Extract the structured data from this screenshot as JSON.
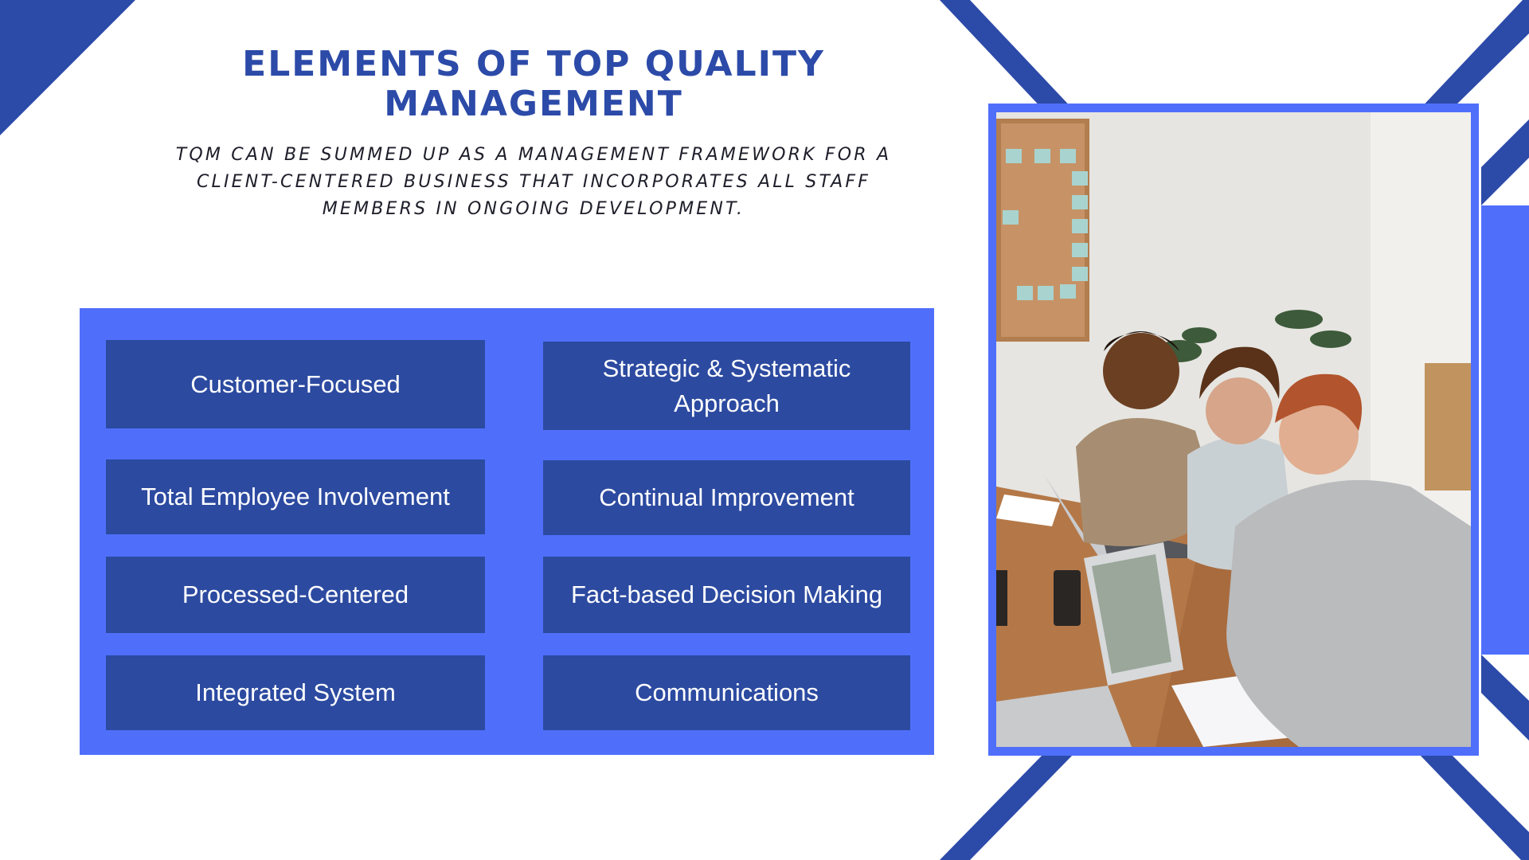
{
  "slide": {
    "title": "ELEMENTS OF TOP QUALITY MANAGEMENT",
    "subtitle": "TQM CAN BE SUMMED UP AS A MANAGEMENT FRAMEWORK FOR A CLIENT-CENTERED BUSINESS THAT INCORPORATES ALL STAFF MEMBERS IN ONGOING DEVELOPMENT."
  },
  "elements": [
    {
      "label": "Customer-Focused"
    },
    {
      "label": "Strategic & Systematic Approach"
    },
    {
      "label": "Total Employee Involvement"
    },
    {
      "label": "Continual Improvement"
    },
    {
      "label": "Processed-Centered"
    },
    {
      "label": "Fact-based Decision Making"
    },
    {
      "label": "Integrated System"
    },
    {
      "label": "Communications"
    }
  ],
  "colors": {
    "accent_dark": "#2c4aa8",
    "accent_light": "#4f6ffb",
    "cell": "#2c4aa0"
  },
  "photo": {
    "icon": "team-meeting-photo"
  }
}
